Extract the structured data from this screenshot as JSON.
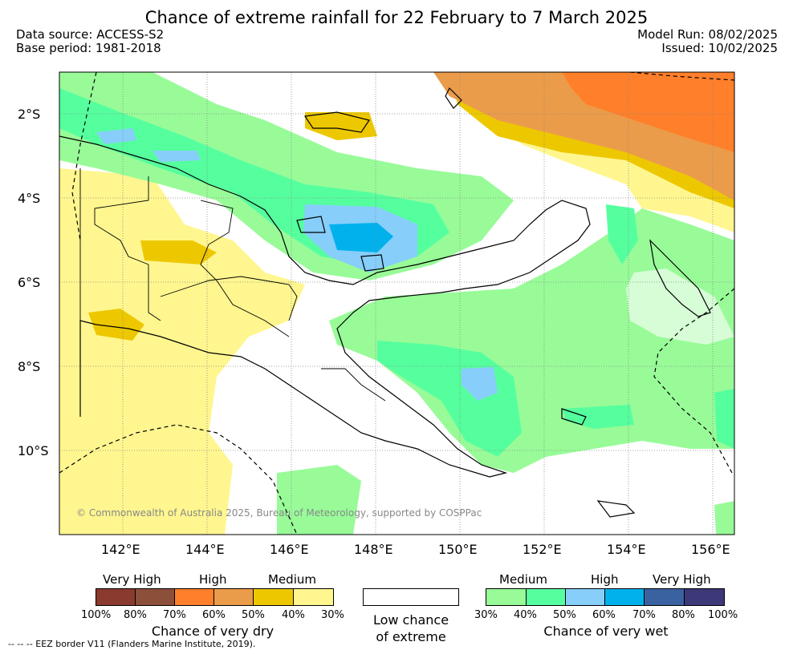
{
  "title": "Chance of extreme rainfall for 22 February to 7 March 2025",
  "meta": {
    "data_source": "Data source: ACCESS-S2",
    "base_period": "Base period: 1981-2018",
    "model_run": "Model Run: 08/02/2025",
    "issued": "Issued: 10/02/2025"
  },
  "axes": {
    "lat_labels": [
      "2°S",
      "4°S",
      "6°S",
      "8°S",
      "10°S"
    ],
    "lon_labels": [
      "142°E",
      "144°E",
      "146°E",
      "148°E",
      "150°E",
      "152°E",
      "154°E",
      "156°E"
    ]
  },
  "copyright": "© Commonwealth of Australia 2025, Bureau of Meteorology, supported by COSPPac",
  "legend": {
    "dry": {
      "categories": [
        "Very High",
        "High",
        "Medium"
      ],
      "percents": [
        "100%",
        "80%",
        "70%",
        "60%",
        "50%",
        "40%",
        "30%"
      ],
      "colors": [
        "#8b3a2f",
        "#8c4f3a",
        "#ff7f2a",
        "#eb9c4a",
        "#edc800",
        "#fff68f"
      ],
      "caption": "Chance of very dry"
    },
    "low": {
      "caption_line1": "Low chance",
      "caption_line2": "of extreme"
    },
    "wet": {
      "categories": [
        "Medium",
        "High",
        "Very High"
      ],
      "percents": [
        "30%",
        "40%",
        "50%",
        "60%",
        "70%",
        "80%",
        "100%"
      ],
      "colors": [
        "#98fb98",
        "#55ff9e",
        "#87cefa",
        "#00b1eb",
        "#3a62a0",
        "#3d3878"
      ],
      "caption": "Chance of very wet"
    }
  },
  "eez_note": "--  --  -- EEZ border V11 (Flanders Marine Institute, 2019)."
}
